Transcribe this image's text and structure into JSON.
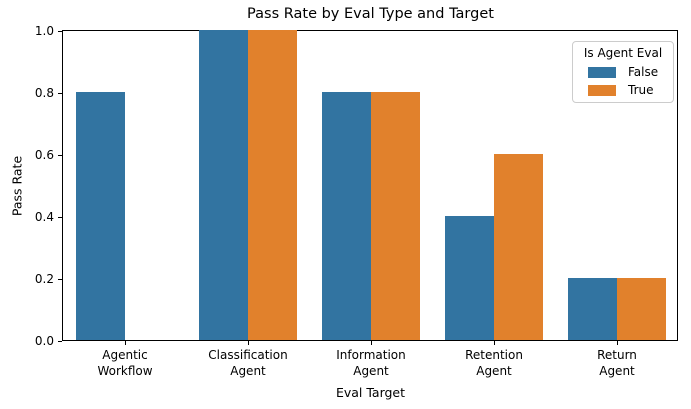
{
  "chart_data": {
    "type": "bar",
    "title": "Pass Rate by Eval Type and Target",
    "xlabel": "Eval Target",
    "ylabel": "Pass Rate",
    "ylim": [
      0.0,
      1.0
    ],
    "grid": false,
    "ytick_values": [
      0.0,
      0.2,
      0.4,
      0.6,
      0.8,
      1.0
    ],
    "ytick_labels": [
      "0.0",
      "0.2",
      "0.4",
      "0.6",
      "0.8",
      "1.0"
    ],
    "categories": [
      "Agentic\nWorkflow",
      "Classification\nAgent",
      "Information\nAgent",
      "Retention\nAgent",
      "Return\nAgent"
    ],
    "legend": {
      "title": "Is Agent Eval",
      "position": "upper right"
    },
    "series": [
      {
        "name": "False",
        "color": "#3274a1",
        "values": [
          0.8,
          1.0,
          0.8,
          0.4,
          0.2
        ]
      },
      {
        "name": "True",
        "color": "#e1812c",
        "values": [
          null,
          1.0,
          0.8,
          0.6,
          0.2
        ]
      }
    ]
  }
}
